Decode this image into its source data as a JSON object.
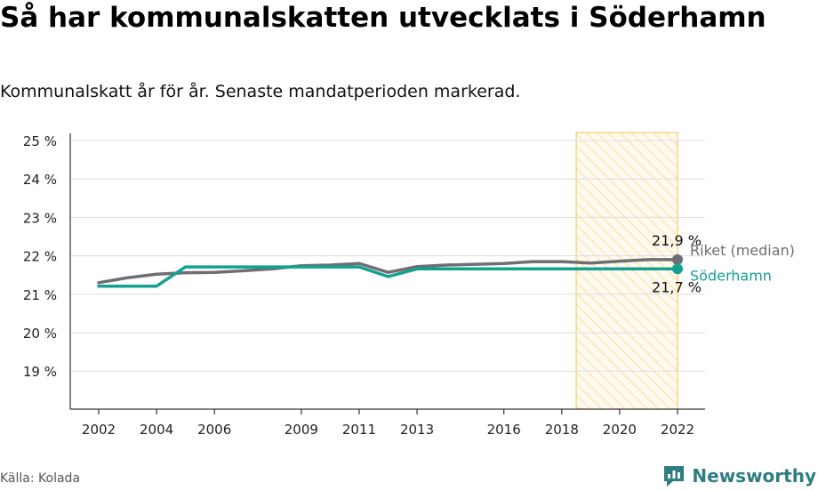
{
  "title": "Så har kommunalskatten utvecklats i Söderhamn",
  "subtitle": "Kommunalskatt år för år. Senaste mandatperioden markerad.",
  "source": "Källa: Kolada",
  "logo_text": "Newsworthy",
  "colors": {
    "riket": "#6e6e73",
    "soderhamn": "#14a192",
    "highlight_fill": "#fde9a8",
    "highlight_stroke": "#f8cc65",
    "grid": "#dddddd"
  },
  "chart_data": {
    "type": "line",
    "x_ticks": [
      2002,
      2004,
      2006,
      2009,
      2011,
      2013,
      2016,
      2018,
      2020,
      2022
    ],
    "x_range": [
      2002,
      2022
    ],
    "ylim": [
      18,
      25.2
    ],
    "y_ticks": [
      19,
      20,
      21,
      22,
      23,
      24,
      25
    ],
    "y_tick_labels": [
      "19 %",
      "20 %",
      "21 %",
      "22 %",
      "23 %",
      "24 %",
      "25 %"
    ],
    "highlight_period": [
      2018.5,
      2022
    ],
    "grid": true,
    "series": [
      {
        "name": "Riket (median)",
        "color": "#6e6e73",
        "end_label": "21,9 %",
        "x": [
          2002,
          2003,
          2004,
          2005,
          2006,
          2007,
          2008,
          2009,
          2010,
          2011,
          2012,
          2013,
          2014,
          2015,
          2016,
          2017,
          2018,
          2019,
          2020,
          2021,
          2022
        ],
        "values": [
          21.3,
          21.43,
          21.52,
          21.56,
          21.57,
          21.61,
          21.66,
          21.74,
          21.76,
          21.8,
          21.57,
          21.72,
          21.76,
          21.78,
          21.8,
          21.85,
          21.85,
          21.81,
          21.86,
          21.9,
          21.9
        ]
      },
      {
        "name": "Söderhamn",
        "color": "#14a192",
        "end_label": "21,7 %",
        "x": [
          2002,
          2003,
          2004,
          2005,
          2006,
          2007,
          2008,
          2009,
          2010,
          2011,
          2012,
          2013,
          2014,
          2015,
          2016,
          2017,
          2018,
          2019,
          2020,
          2021,
          2022
        ],
        "values": [
          21.21,
          21.21,
          21.21,
          21.71,
          21.71,
          21.71,
          21.71,
          21.71,
          21.71,
          21.71,
          21.46,
          21.66,
          21.66,
          21.66,
          21.66,
          21.66,
          21.66,
          21.66,
          21.66,
          21.66,
          21.66
        ]
      }
    ]
  }
}
